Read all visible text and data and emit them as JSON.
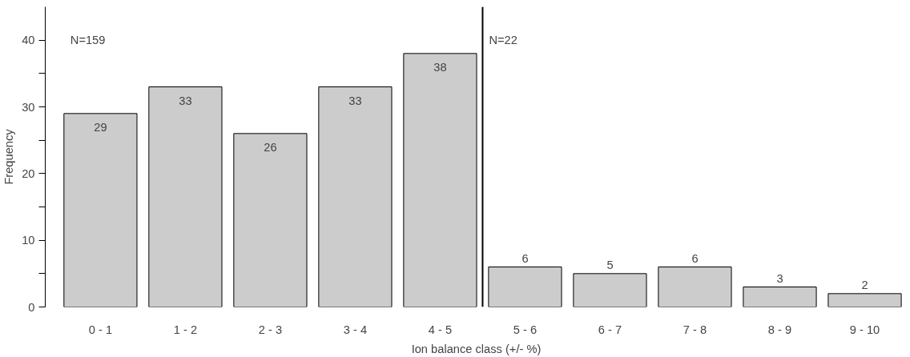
{
  "chart_data": {
    "type": "bar",
    "xlabel": "Ion balance class (+/- %)",
    "ylabel": "Frequency",
    "categories": [
      "0 - 1",
      "1 - 2",
      "2 - 3",
      "3 - 4",
      "4 - 5",
      "5 - 6",
      "6 - 7",
      "7 - 8",
      "8 - 9",
      "9 - 10"
    ],
    "values": [
      29,
      33,
      26,
      33,
      38,
      6,
      5,
      6,
      3,
      2
    ],
    "color": "#cccccc",
    "ylim": [
      0,
      45
    ],
    "yticks": [
      0,
      10,
      20,
      30,
      40
    ],
    "annotations": [
      "N=159",
      "N=22"
    ],
    "data_labels": true,
    "grid": false
  }
}
